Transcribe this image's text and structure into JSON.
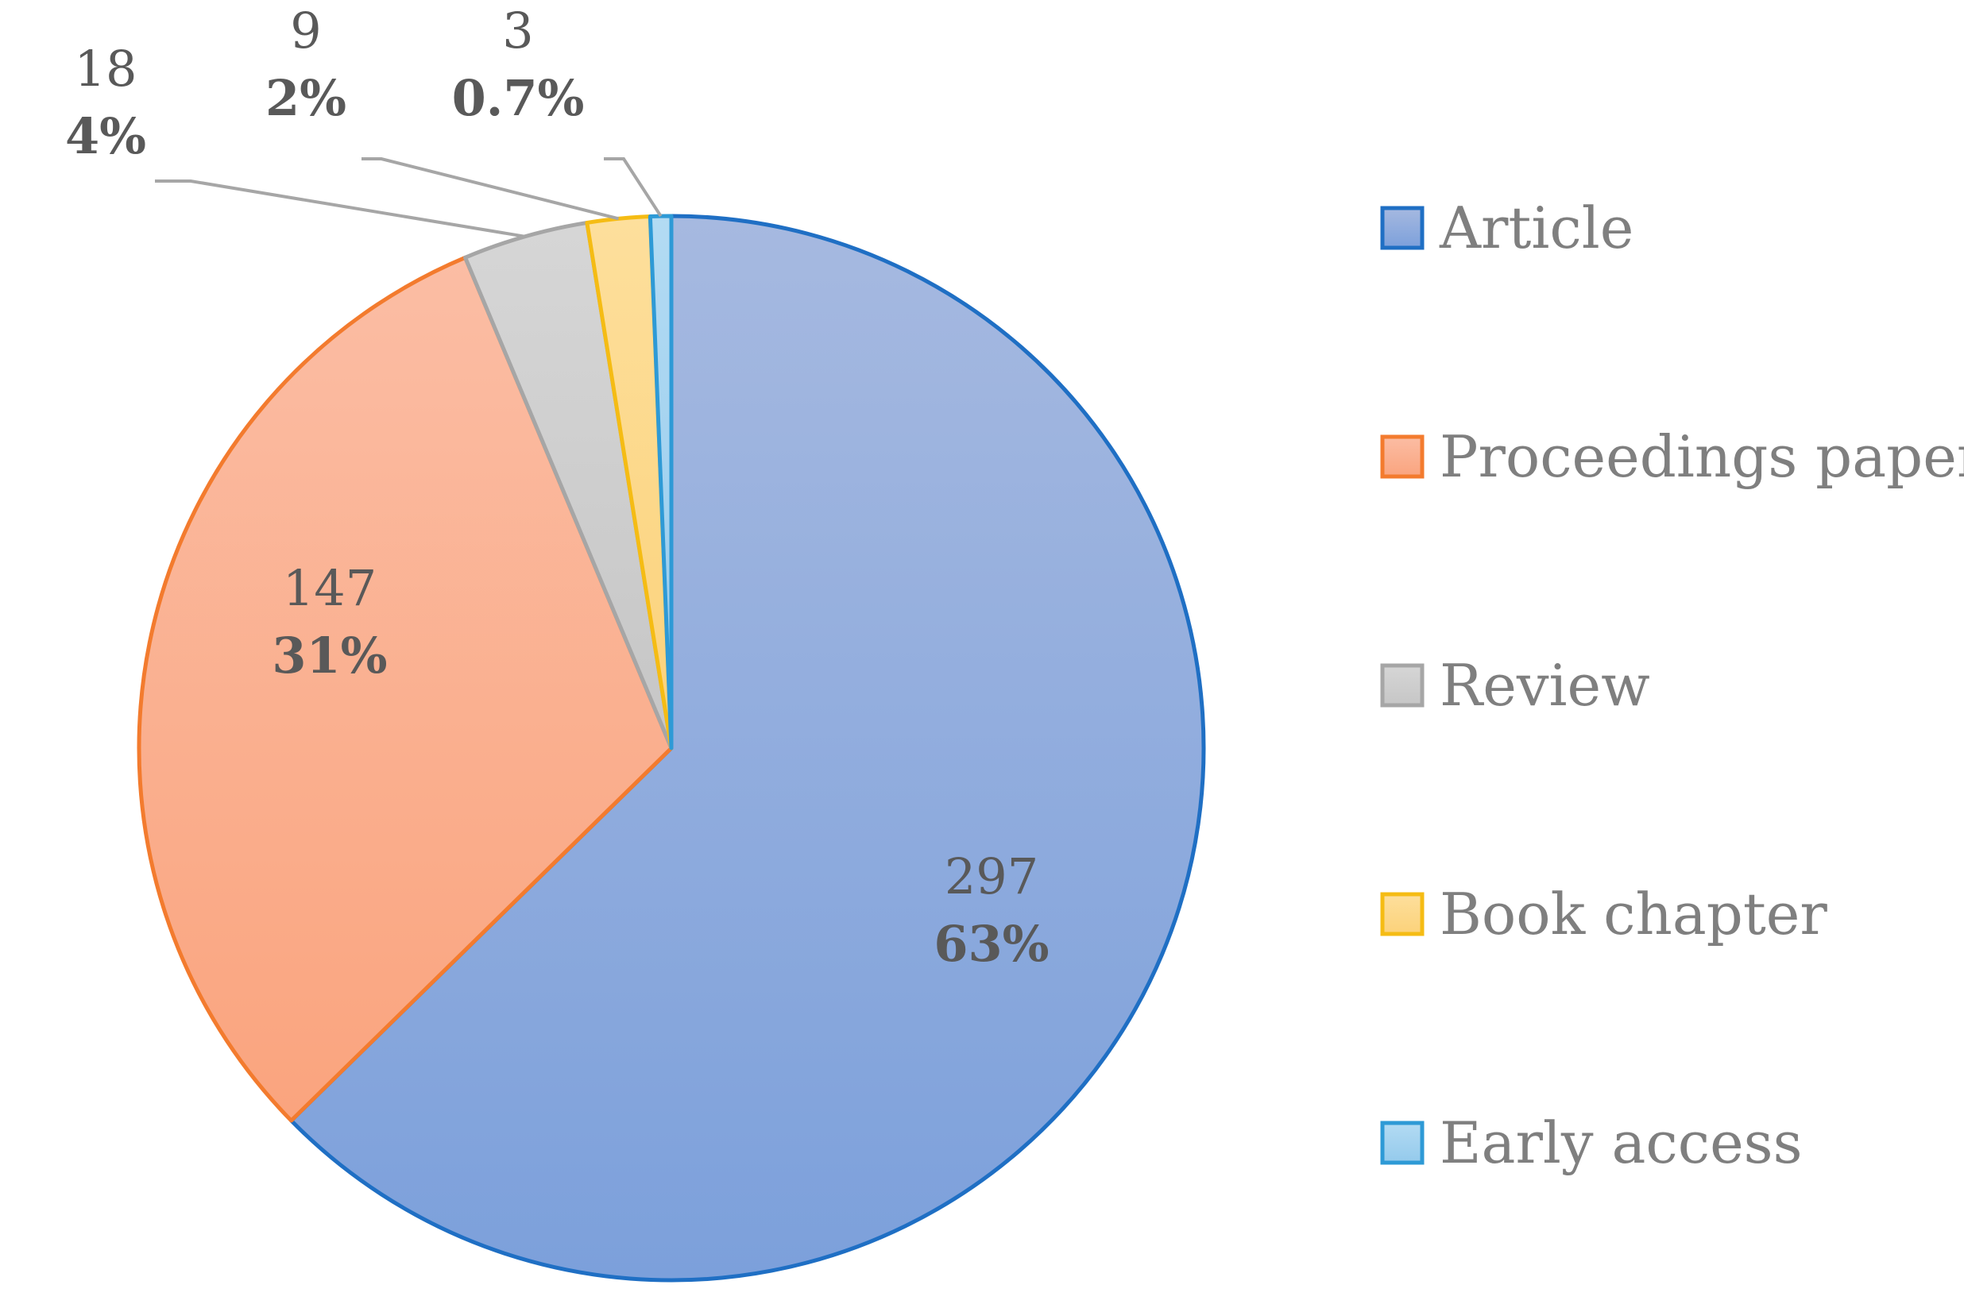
{
  "chart_data": {
    "type": "pie",
    "title": "",
    "legend_position": "right",
    "categories": [
      "Article",
      "Proceedings paper",
      "Review",
      "Book chapter",
      "Early access"
    ],
    "values": [
      297,
      147,
      18,
      9,
      3
    ],
    "percent_labels": [
      "63%",
      "31%",
      "4%",
      "2%",
      "0.7%"
    ],
    "colors": {
      "fill": [
        "#91ABDD",
        "#FBAF8E",
        "#CFCFCF",
        "#FDD98A",
        "#A3D2EF"
      ],
      "stroke": [
        "#1F6FC4",
        "#F37B2E",
        "#A6A6A6",
        "#F5BC14",
        "#2E9AD6"
      ]
    }
  }
}
